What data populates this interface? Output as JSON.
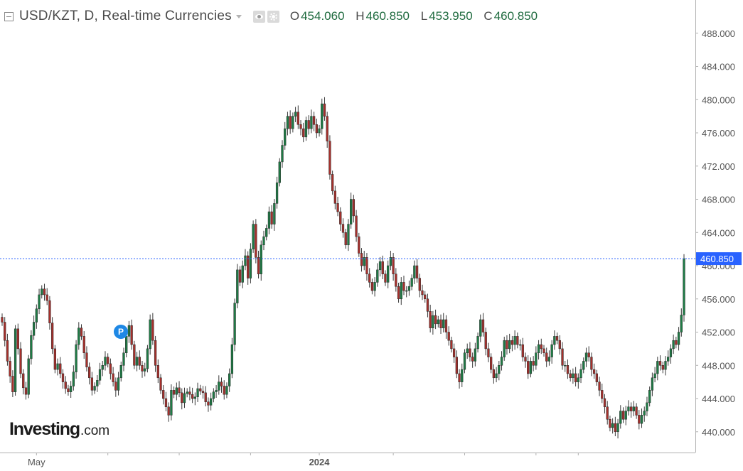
{
  "header": {
    "title": "USD/KZT, D, Real-time Currencies",
    "ohlc": [
      {
        "label": "O",
        "value": "454.060"
      },
      {
        "label": "H",
        "value": "460.850"
      },
      {
        "label": "L",
        "value": "453.950"
      },
      {
        "label": "C",
        "value": "460.850"
      }
    ]
  },
  "logo": {
    "main": "Investing",
    "suffix": ".com"
  },
  "marker": {
    "letter": "P"
  },
  "colors": {
    "up": "#1e7b45",
    "down": "#a6302c",
    "wick": "#3a3a3a",
    "axis": "#b0b0b0",
    "price_line": "#2962ff",
    "price_tag": "#2962ff",
    "axis_text": "#555555"
  },
  "chart_data": {
    "type": "candlestick",
    "symbol": "USD/KZT",
    "interval": "D",
    "ylim": [
      437.5,
      492.0
    ],
    "y_ticks": [
      "440.000",
      "444.000",
      "448.000",
      "452.000",
      "456.000",
      "460.000",
      "464.000",
      "468.000",
      "472.000",
      "476.000",
      "480.000",
      "484.000",
      "488.000"
    ],
    "x_labels": [
      {
        "label": "May",
        "index": 13
      },
      {
        "label": "2024",
        "index": 120
      }
    ],
    "x_tick_indices": [
      13,
      40,
      67,
      94,
      120,
      148,
      175,
      202,
      218
    ],
    "last_price": "460.850",
    "last_value": 460.85,
    "series": [
      {
        "name": "USD/KZT",
        "close": [
          453.2,
          451.0,
          448.5,
          446.7,
          444.8,
          452.4,
          450.0,
          447.0,
          445.3,
          444.5,
          448.8,
          451.6,
          453.2,
          454.8,
          456.5,
          457.2,
          456.5,
          455.8,
          453.1,
          450.0,
          447.5,
          448.2,
          447.0,
          446.0,
          445.2,
          444.8,
          445.5,
          447.2,
          450.5,
          452.5,
          451.5,
          449.5,
          447.8,
          446.5,
          445.0,
          445.5,
          446.2,
          447.5,
          448.0,
          449.0,
          448.2,
          447.0,
          446.0,
          445.0,
          446.5,
          448.0,
          449.5,
          451.5,
          452.8,
          450.5,
          448.0,
          449.0,
          448.0,
          447.3,
          447.6,
          450.0,
          453.5,
          451.0,
          448.0,
          446.5,
          445.0,
          444.0,
          443.0,
          442.0,
          445.0,
          444.5,
          445.3,
          444.7,
          443.5,
          444.6,
          444.8,
          444.5,
          444.0,
          444.2,
          445.2,
          444.9,
          444.7,
          443.6,
          443.2,
          444.0,
          444.8,
          445.0,
          446.0,
          445.5,
          444.5,
          445.5,
          447.0,
          450.5,
          455.5,
          459.5,
          458.0,
          460.0,
          461.2,
          458.5,
          462.0,
          465.0,
          461.0,
          459.0,
          462.5,
          463.5,
          464.5,
          466.5,
          465.0,
          467.5,
          470.0,
          472.5,
          474.5,
          476.5,
          478.0,
          476.5,
          478.0,
          478.5,
          477.0,
          476.5,
          475.5,
          477.5,
          476.5,
          478.0,
          477.0,
          476.0,
          476.5,
          479.5,
          478.0,
          475.0,
          471.0,
          469.0,
          467.5,
          466.5,
          465.0,
          464.0,
          462.5,
          465.0,
          468.0,
          466.0,
          463.5,
          461.5,
          460.0,
          461.0,
          459.0,
          458.0,
          457.0,
          458.0,
          459.5,
          460.5,
          459.0,
          458.0,
          460.0,
          461.0,
          459.0,
          457.5,
          456.0,
          458.0,
          457.0,
          457.0,
          457.5,
          458.5,
          460.0,
          458.5,
          457.0,
          456.5,
          456.0,
          454.5,
          452.5,
          454.0,
          453.0,
          453.5,
          452.5,
          453.5,
          452.0,
          451.0,
          450.0,
          449.0,
          447.0,
          446.0,
          447.5,
          449.5,
          450.0,
          449.0,
          448.5,
          450.0,
          451.5,
          453.5,
          452.0,
          450.0,
          449.0,
          447.5,
          446.5,
          447.0,
          448.0,
          449.0,
          451.0,
          450.0,
          451.0,
          450.5,
          451.5,
          450.5,
          450.5,
          449.0,
          448.5,
          447.0,
          448.5,
          448.0,
          449.5,
          450.5,
          450.0,
          449.5,
          448.5,
          449.0,
          450.5,
          451.5,
          451.0,
          450.0,
          448.0,
          448.0,
          447.0,
          446.5,
          447.0,
          446.0,
          446.5,
          447.5,
          448.5,
          449.5,
          449.0,
          447.5,
          447.0,
          446.0,
          445.0,
          444.0,
          443.0,
          441.5,
          440.5,
          441.0,
          440.0,
          441.0,
          442.5,
          441.5,
          442.5,
          443.0,
          442.5,
          443.0,
          442.0,
          441.0,
          442.0,
          442.5,
          443.5,
          445.0,
          446.5,
          447.0,
          448.5,
          448.0,
          447.5,
          448.5,
          449.0,
          450.0,
          451.0,
          450.5,
          452.0,
          454.06,
          460.85
        ]
      }
    ]
  }
}
